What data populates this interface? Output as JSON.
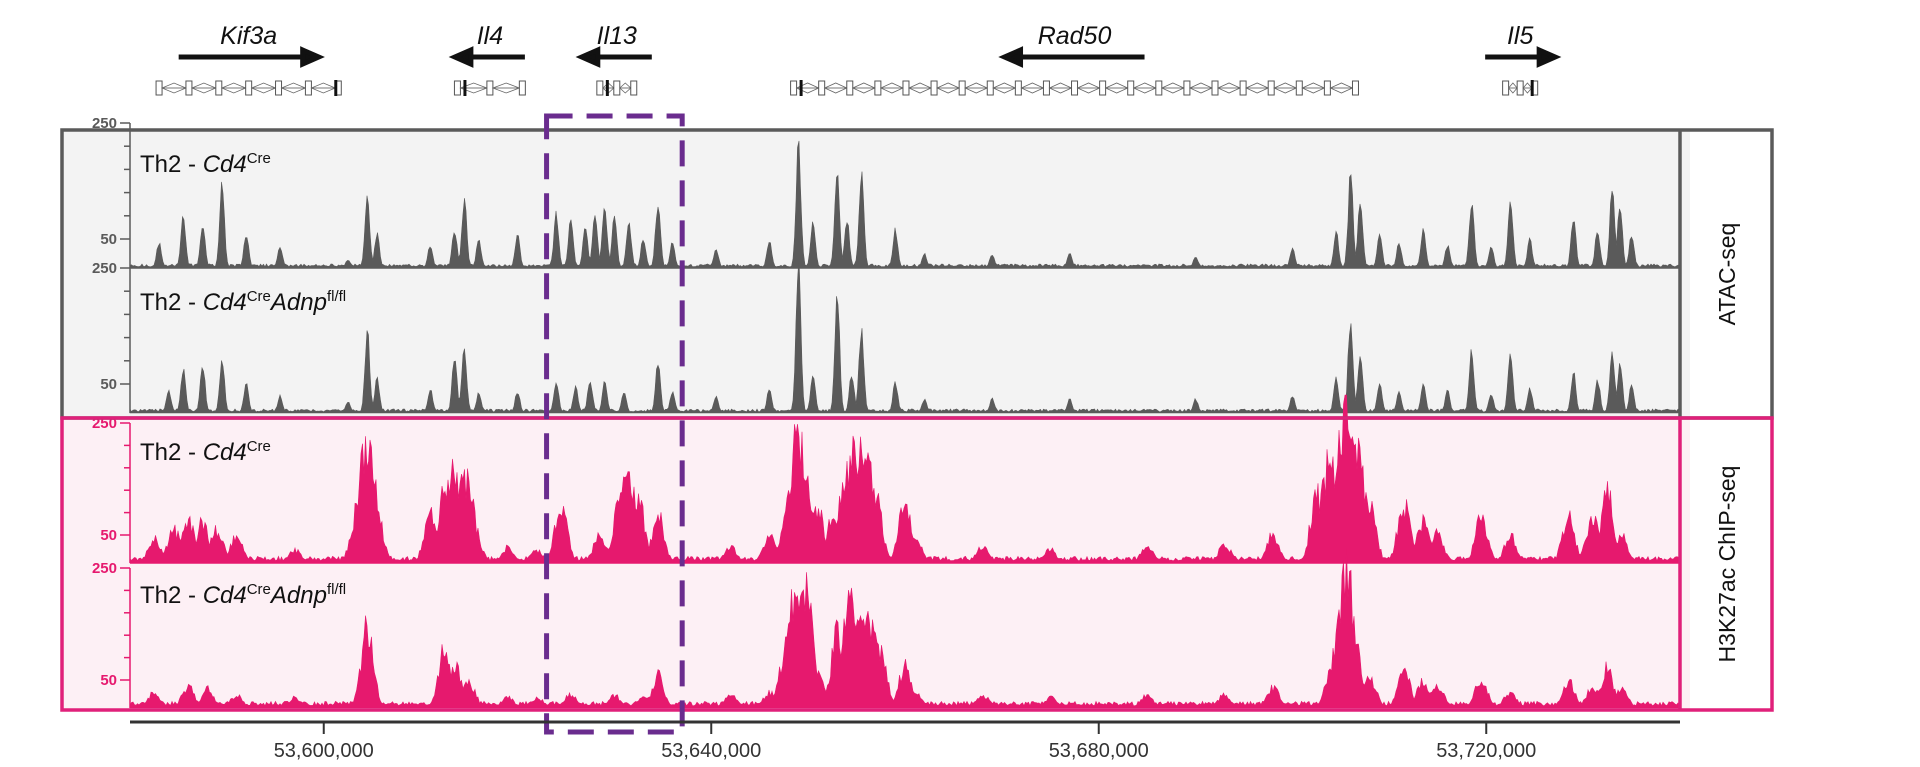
{
  "colors": {
    "atac": "#5a5a5a",
    "atac_border": "#5a5a5a",
    "atac_bg": "#f3f3f3",
    "chip": "#e6196e",
    "chip_border": "#e0207a",
    "chip_bg": "#fdf0f5",
    "highlight": "#6a2c8e"
  },
  "genes": [
    {
      "name": "Kif3a",
      "direction": "right",
      "start": 53583000,
      "end": 53601500
    },
    {
      "name": "Il4",
      "direction": "left",
      "start": 53613800,
      "end": 53620500
    },
    {
      "name": "Il13",
      "direction": "left",
      "start": 53628500,
      "end": 53632000
    },
    {
      "name": "Rad50",
      "direction": "left",
      "start": 53648500,
      "end": 53706500
    },
    {
      "name": "Il5",
      "direction": "right",
      "start": 53722000,
      "end": 53725000
    }
  ],
  "highlight_region": {
    "start": 53623000,
    "end": 53637000
  },
  "tracks": [
    {
      "group": "ATAC-seq",
      "prefix": "Th2 - ",
      "name": "Cd4",
      "sup": "Cre",
      "name2": "",
      "sup2": "",
      "yticks": [
        "250",
        "50"
      ],
      "ymax": 250
    },
    {
      "group": "ATAC-seq",
      "prefix": "Th2 - ",
      "name": "Cd4",
      "sup": "Cre",
      "name2": "Adnp",
      "sup2": "fl/fl",
      "yticks": [
        "250",
        "50"
      ],
      "ymax": 250
    },
    {
      "group": "H3K27ac ChIP-seq",
      "prefix": "Th2 - ",
      "name": "Cd4",
      "sup": "Cre",
      "name2": "",
      "sup2": "",
      "yticks": [
        "250",
        "50"
      ],
      "ymax": 250
    },
    {
      "group": "H3K27ac ChIP-seq",
      "prefix": "Th2 - ",
      "name": "Cd4",
      "sup": "Cre",
      "name2": "Adnp",
      "sup2": "fl/fl",
      "yticks": [
        "250",
        "50"
      ],
      "ymax": 250
    }
  ],
  "panels": [
    {
      "label": "ATAC-seq"
    },
    {
      "label": "H3K27ac ChIP-seq"
    }
  ],
  "chart_data": {
    "type": "area",
    "xlim": [
      53580000,
      53740000
    ],
    "ylim": [
      0,
      250
    ],
    "x_ticks": [
      {
        "value": 53600000,
        "label": "53,600,000"
      },
      {
        "value": 53640000,
        "label": "53,640,000"
      },
      {
        "value": 53680000,
        "label": "53,680,000"
      },
      {
        "value": 53720000,
        "label": "53,720,000"
      }
    ],
    "series": [
      {
        "name": "Th2 - Cd4Cre (ATAC-seq)",
        "peaks": [
          [
            53583000,
            45
          ],
          [
            53585500,
            95
          ],
          [
            53587500,
            80
          ],
          [
            53589500,
            150
          ],
          [
            53592000,
            60
          ],
          [
            53595500,
            40
          ],
          [
            53602500,
            15
          ],
          [
            53604500,
            125
          ],
          [
            53605500,
            60
          ],
          [
            53611000,
            40
          ],
          [
            53613500,
            70
          ],
          [
            53614500,
            125
          ],
          [
            53616000,
            50
          ],
          [
            53620000,
            60
          ],
          [
            53624000,
            95
          ],
          [
            53625500,
            85
          ],
          [
            53627000,
            70
          ],
          [
            53628000,
            95
          ],
          [
            53629000,
            110
          ],
          [
            53630000,
            90
          ],
          [
            53631500,
            85
          ],
          [
            53633000,
            55
          ],
          [
            53634500,
            120
          ],
          [
            53636000,
            45
          ],
          [
            53640500,
            35
          ],
          [
            53646000,
            50
          ],
          [
            53649000,
            220
          ],
          [
            53650500,
            80
          ],
          [
            53653000,
            180
          ],
          [
            53654000,
            90
          ],
          [
            53655500,
            170
          ],
          [
            53659000,
            70
          ],
          [
            53662000,
            25
          ],
          [
            53669000,
            25
          ],
          [
            53677000,
            25
          ],
          [
            53690000,
            20
          ],
          [
            53700000,
            35
          ],
          [
            53704500,
            65
          ],
          [
            53706000,
            170
          ],
          [
            53707000,
            120
          ],
          [
            53709000,
            60
          ],
          [
            53711000,
            45
          ],
          [
            53713500,
            70
          ],
          [
            53716000,
            40
          ],
          [
            53718500,
            125
          ],
          [
            53720500,
            40
          ],
          [
            53722500,
            125
          ],
          [
            53724500,
            50
          ],
          [
            53729000,
            90
          ],
          [
            53731500,
            70
          ],
          [
            53733000,
            140
          ],
          [
            53733800,
            110
          ],
          [
            53735000,
            60
          ]
        ],
        "widths": "narrow"
      },
      {
        "name": "Th2 - Cd4CreAdnpfl/fl (ATAC-seq)",
        "peaks": [
          [
            53584000,
            40
          ],
          [
            53585500,
            80
          ],
          [
            53587500,
            90
          ],
          [
            53589500,
            95
          ],
          [
            53592000,
            55
          ],
          [
            53595500,
            30
          ],
          [
            53602500,
            20
          ],
          [
            53604500,
            145
          ],
          [
            53605500,
            60
          ],
          [
            53611000,
            45
          ],
          [
            53613500,
            100
          ],
          [
            53614500,
            125
          ],
          [
            53616000,
            35
          ],
          [
            53620000,
            40
          ],
          [
            53624000,
            55
          ],
          [
            53626000,
            45
          ],
          [
            53627500,
            60
          ],
          [
            53629000,
            55
          ],
          [
            53631000,
            40
          ],
          [
            53634500,
            95
          ],
          [
            53636000,
            40
          ],
          [
            53640500,
            30
          ],
          [
            53646000,
            45
          ],
          [
            53649000,
            280
          ],
          [
            53650500,
            70
          ],
          [
            53653000,
            215
          ],
          [
            53654500,
            70
          ],
          [
            53655500,
            150
          ],
          [
            53659000,
            55
          ],
          [
            53662000,
            25
          ],
          [
            53669000,
            25
          ],
          [
            53677000,
            25
          ],
          [
            53690000,
            25
          ],
          [
            53700000,
            30
          ],
          [
            53704500,
            60
          ],
          [
            53706000,
            175
          ],
          [
            53707000,
            110
          ],
          [
            53709000,
            55
          ],
          [
            53711000,
            40
          ],
          [
            53713500,
            55
          ],
          [
            53716000,
            40
          ],
          [
            53718500,
            110
          ],
          [
            53720500,
            35
          ],
          [
            53722500,
            110
          ],
          [
            53724500,
            45
          ],
          [
            53729000,
            75
          ],
          [
            53731500,
            60
          ],
          [
            53733000,
            115
          ],
          [
            53733800,
            90
          ],
          [
            53735000,
            50
          ]
        ],
        "widths": "narrow"
      },
      {
        "name": "Th2 - Cd4Cre (H3K27ac ChIP-seq)",
        "peaks": [
          [
            53582500,
            45
          ],
          [
            53584500,
            65
          ],
          [
            53586000,
            80
          ],
          [
            53587500,
            75
          ],
          [
            53589000,
            65
          ],
          [
            53591000,
            50
          ],
          [
            53597000,
            25
          ],
          [
            53604500,
            230
          ],
          [
            53611000,
            90
          ],
          [
            53612500,
            150
          ],
          [
            53613500,
            170
          ],
          [
            53614500,
            165
          ],
          [
            53619000,
            30
          ],
          [
            53622000,
            25
          ],
          [
            53624500,
            105
          ],
          [
            53628500,
            55
          ],
          [
            53630500,
            110
          ],
          [
            53631500,
            160
          ],
          [
            53632500,
            120
          ],
          [
            53634500,
            90
          ],
          [
            53642000,
            30
          ],
          [
            53646000,
            50
          ],
          [
            53648000,
            135
          ],
          [
            53649000,
            240
          ],
          [
            53651000,
            100
          ],
          [
            53652500,
            80
          ],
          [
            53654000,
            160
          ],
          [
            53655000,
            215
          ],
          [
            53656000,
            180
          ],
          [
            53657000,
            120
          ],
          [
            53660000,
            120
          ],
          [
            53661000,
            50
          ],
          [
            53668000,
            30
          ],
          [
            53675000,
            25
          ],
          [
            53685000,
            30
          ],
          [
            53693000,
            35
          ],
          [
            53698000,
            55
          ],
          [
            53702500,
            135
          ],
          [
            53704000,
            200
          ],
          [
            53705500,
            290
          ],
          [
            53706500,
            230
          ],
          [
            53708000,
            105
          ],
          [
            53711500,
            110
          ],
          [
            53713500,
            80
          ],
          [
            53715000,
            55
          ],
          [
            53719500,
            85
          ],
          [
            53722500,
            50
          ],
          [
            53728500,
            85
          ],
          [
            53731000,
            90
          ],
          [
            53732500,
            130
          ],
          [
            53734000,
            50
          ]
        ],
        "widths": "wide"
      },
      {
        "name": "Th2 - Cd4CreAdnpfl/fl (H3K27ac ChIP-seq)",
        "peaks": [
          [
            53582500,
            30
          ],
          [
            53586000,
            40
          ],
          [
            53588000,
            35
          ],
          [
            53591000,
            25
          ],
          [
            53597000,
            20
          ],
          [
            53604500,
            150
          ],
          [
            53612500,
            110
          ],
          [
            53613500,
            85
          ],
          [
            53615000,
            50
          ],
          [
            53619000,
            20
          ],
          [
            53622000,
            20
          ],
          [
            53625500,
            25
          ],
          [
            53630000,
            25
          ],
          [
            53633000,
            20
          ],
          [
            53634500,
            60
          ],
          [
            53642000,
            25
          ],
          [
            53646000,
            30
          ],
          [
            53648500,
            190
          ],
          [
            53649500,
            230
          ],
          [
            53651000,
            60
          ],
          [
            53653000,
            140
          ],
          [
            53654500,
            205
          ],
          [
            53655500,
            200
          ],
          [
            53656500,
            160
          ],
          [
            53657500,
            110
          ],
          [
            53660000,
            80
          ],
          [
            53661000,
            35
          ],
          [
            53668000,
            25
          ],
          [
            53675000,
            20
          ],
          [
            53685000,
            25
          ],
          [
            53693000,
            25
          ],
          [
            53698000,
            40
          ],
          [
            53704000,
            70
          ],
          [
            53705500,
            250
          ],
          [
            53706500,
            110
          ],
          [
            53708000,
            55
          ],
          [
            53711500,
            75
          ],
          [
            53713500,
            50
          ],
          [
            53715000,
            40
          ],
          [
            53719500,
            55
          ],
          [
            53722500,
            30
          ],
          [
            53728500,
            50
          ],
          [
            53731000,
            40
          ],
          [
            53732500,
            75
          ],
          [
            53734000,
            35
          ]
        ],
        "widths": "wide"
      }
    ]
  }
}
